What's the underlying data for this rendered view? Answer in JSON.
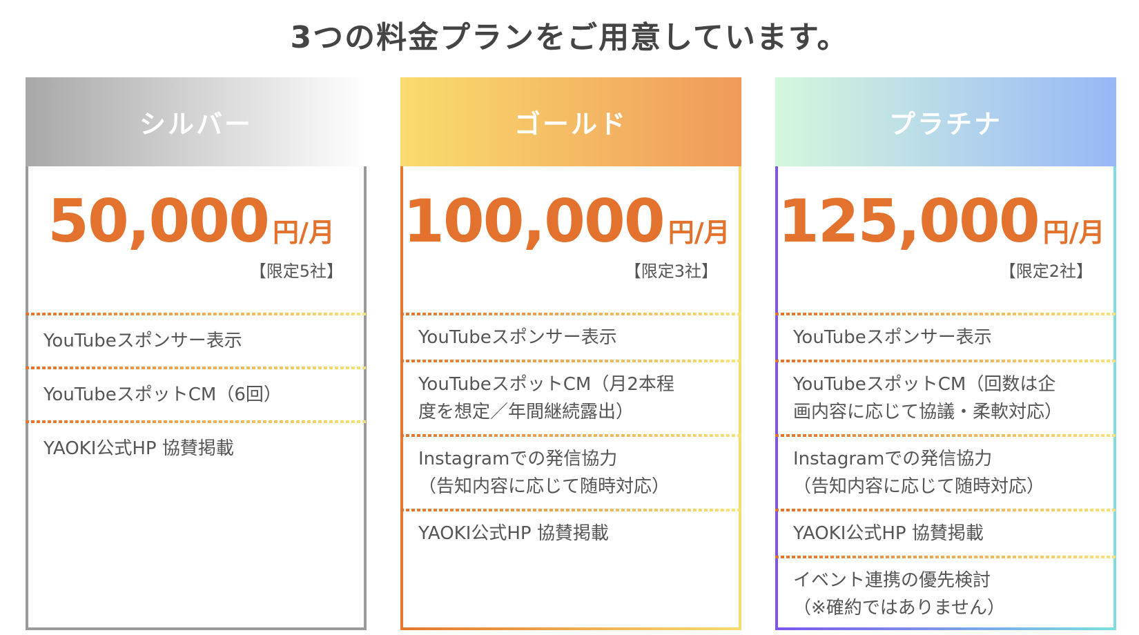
{
  "title": "3つの料金プランをご用意しています。",
  "plans": [
    {
      "name": "シルバー",
      "price": "50,000",
      "unit": "円/月",
      "limit": "【限定5社】",
      "features": [
        "YouTubeスポンサー表示",
        "YouTubeスポットCM（6回）",
        "YAOKI公式HP 協賛掲載"
      ]
    },
    {
      "name": "ゴールド",
      "price": "100,000",
      "unit": "円/月",
      "limit": "【限定3社】",
      "features": [
        "YouTubeスポンサー表示",
        "YouTubeスポットCM（月2本程\n度を想定／年間継続露出）",
        "Instagramでの発信協力\n（告知内容に応じて随時対応）",
        "YAOKI公式HP 協賛掲載"
      ]
    },
    {
      "name": "プラチナ",
      "price": "125,000",
      "unit": "円/月",
      "limit": "【限定2社】",
      "features": [
        "YouTubeスポンサー表示",
        "YouTubeスポットCM（回数は企\n画内容に応じて協議・柔軟対応）",
        "Instagramでの発信協力\n（告知内容に応じて随時対応）",
        "YAOKI公式HP 協賛掲載",
        "イベント連携の優先検討\n（※確約ではありません）"
      ]
    }
  ],
  "colors": {
    "price": "#e2722e",
    "text": "#555555",
    "title": "#444444"
  }
}
